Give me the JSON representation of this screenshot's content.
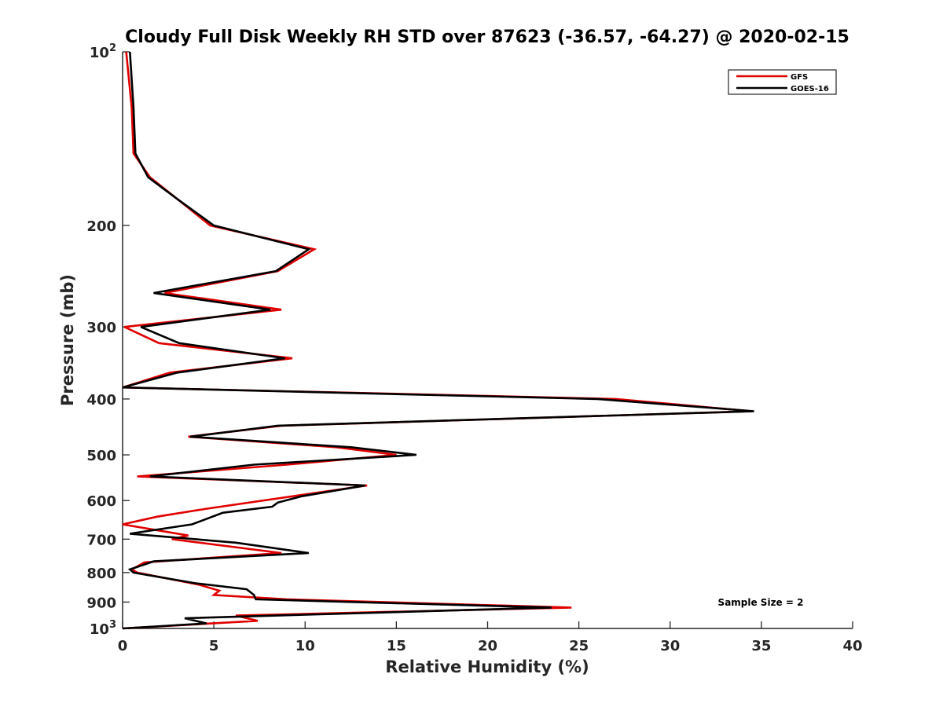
{
  "chart_data": {
    "type": "line",
    "title": "Cloudy Full Disk Weekly RH STD over 87623 (-36.57, -64.27) @ 2020-02-15",
    "xlabel": "Relative Humidity (%)",
    "ylabel": "Pressure (mb)",
    "xlim": [
      0,
      40
    ],
    "ylim": [
      100,
      1000
    ],
    "yscale": "log",
    "y_reversed": true,
    "grid": false,
    "legend_position": "top-right",
    "xticks": [
      "0",
      "5",
      "10",
      "15",
      "20",
      "25",
      "30",
      "35",
      "40"
    ],
    "yticks": [
      {
        "value": 100,
        "label": "10",
        "sup": "2"
      },
      {
        "value": 200,
        "label": "200",
        "sup": ""
      },
      {
        "value": 300,
        "label": "300",
        "sup": ""
      },
      {
        "value": 400,
        "label": "400",
        "sup": ""
      },
      {
        "value": 500,
        "label": "500",
        "sup": ""
      },
      {
        "value": 600,
        "label": "600",
        "sup": ""
      },
      {
        "value": 700,
        "label": "700",
        "sup": ""
      },
      {
        "value": 800,
        "label": "800",
        "sup": ""
      },
      {
        "value": 900,
        "label": "900",
        "sup": ""
      },
      {
        "value": 1000,
        "label": "10",
        "sup": "3"
      }
    ],
    "annotation": "Sample Size = 2",
    "series": [
      {
        "name": "GFS",
        "color": "#e00000",
        "points": [
          [
            0.2,
            100
          ],
          [
            0.5,
            125
          ],
          [
            0.6,
            150
          ],
          [
            1.5,
            165
          ],
          [
            3.0,
            180
          ],
          [
            4.8,
            200
          ],
          [
            10.5,
            220
          ],
          [
            8.5,
            240
          ],
          [
            2.3,
            262
          ],
          [
            8.7,
            280
          ],
          [
            0.1,
            300
          ],
          [
            2.0,
            320
          ],
          [
            9.3,
            340
          ],
          [
            2.6,
            360
          ],
          [
            0.0,
            382
          ],
          [
            27.0,
            400
          ],
          [
            34.5,
            420
          ],
          [
            8.7,
            445
          ],
          [
            3.6,
            465
          ],
          [
            11.7,
            485
          ],
          [
            15.0,
            500
          ],
          [
            9.0,
            520
          ],
          [
            0.8,
            545
          ],
          [
            13.4,
            565
          ],
          [
            9.3,
            590
          ],
          [
            4.6,
            620
          ],
          [
            1.9,
            640
          ],
          [
            0.0,
            660
          ],
          [
            3.6,
            690
          ],
          [
            2.7,
            700
          ],
          [
            8.7,
            740
          ],
          [
            1.2,
            768
          ],
          [
            0.5,
            790
          ],
          [
            0.8,
            800
          ],
          [
            4.2,
            840
          ],
          [
            5.3,
            860
          ],
          [
            5.0,
            875
          ],
          [
            9.0,
            890
          ],
          [
            24.6,
            920
          ],
          [
            6.2,
            950
          ],
          [
            7.4,
            970
          ],
          [
            0.0,
            1000
          ]
        ]
      },
      {
        "name": "GOES-16",
        "color": "#000000",
        "points": [
          [
            0.4,
            100
          ],
          [
            0.6,
            125
          ],
          [
            0.7,
            150
          ],
          [
            1.4,
            165
          ],
          [
            3.0,
            180
          ],
          [
            5.0,
            200
          ],
          [
            10.2,
            220
          ],
          [
            8.4,
            240
          ],
          [
            1.7,
            262
          ],
          [
            8.1,
            280
          ],
          [
            1.0,
            300
          ],
          [
            3.1,
            320
          ],
          [
            8.9,
            340
          ],
          [
            3.0,
            360
          ],
          [
            0.0,
            382
          ],
          [
            26.0,
            400
          ],
          [
            34.6,
            420
          ],
          [
            8.5,
            445
          ],
          [
            3.7,
            465
          ],
          [
            12.5,
            485
          ],
          [
            16.1,
            500
          ],
          [
            7.2,
            520
          ],
          [
            1.5,
            545
          ],
          [
            13.3,
            565
          ],
          [
            9.8,
            590
          ],
          [
            8.5,
            605
          ],
          [
            8.2,
            615
          ],
          [
            5.5,
            630
          ],
          [
            3.8,
            660
          ],
          [
            0.4,
            685
          ],
          [
            6.2,
            710
          ],
          [
            10.2,
            740
          ],
          [
            1.7,
            765
          ],
          [
            0.4,
            790
          ],
          [
            0.6,
            800
          ],
          [
            4.0,
            835
          ],
          [
            6.8,
            855
          ],
          [
            7.2,
            875
          ],
          [
            7.3,
            890
          ],
          [
            23.5,
            920
          ],
          [
            3.4,
            960
          ],
          [
            4.6,
            980
          ],
          [
            0.0,
            1000
          ]
        ]
      }
    ]
  }
}
